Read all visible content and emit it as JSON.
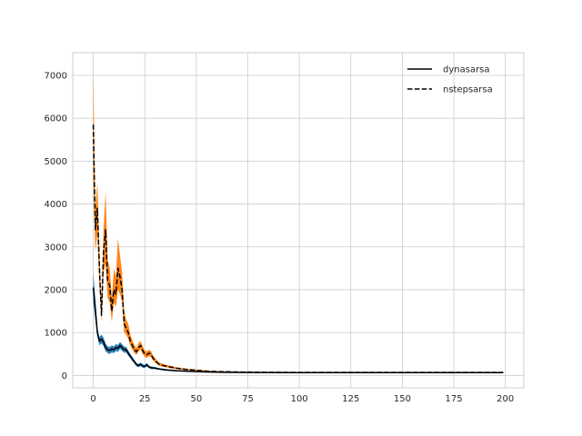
{
  "chart_data": {
    "type": "line",
    "title": "",
    "xlabel": "",
    "ylabel": "",
    "xlim": [
      -9.95,
      208.95
    ],
    "ylim": [
      -290,
      7530
    ],
    "xticks": [
      0,
      25,
      50,
      75,
      100,
      125,
      150,
      175,
      200
    ],
    "yticks": [
      0,
      1000,
      2000,
      3000,
      4000,
      5000,
      6000,
      7000
    ],
    "grid": true,
    "legend_position": "top-right",
    "legend": [
      {
        "label": "dynasarsa",
        "linestyle": "solid"
      },
      {
        "label": "nstepsarsa",
        "linestyle": "dashed"
      }
    ],
    "series": [
      {
        "name": "dynasarsa",
        "line_color": "#000000",
        "band_color": "#1f77b4",
        "linestyle": "solid",
        "x": [
          0,
          1,
          2,
          3,
          4,
          5,
          6,
          7,
          8,
          9,
          10,
          11,
          12,
          13,
          14,
          15,
          16,
          17,
          18,
          19,
          20,
          21,
          22,
          23,
          24,
          25,
          26,
          27,
          28,
          30,
          32,
          35,
          40,
          45,
          50,
          55,
          60,
          70,
          80,
          100,
          150,
          199
        ],
        "y": [
          2050,
          1550,
          1000,
          800,
          850,
          780,
          650,
          600,
          580,
          620,
          600,
          650,
          630,
          700,
          650,
          600,
          600,
          520,
          450,
          380,
          320,
          250,
          230,
          260,
          220,
          210,
          250,
          200,
          180,
          170,
          150,
          130,
          110,
          100,
          90,
          80,
          75,
          70,
          68,
          65,
          65,
          65
        ],
        "lower": [
          1700,
          1300,
          900,
          700,
          750,
          680,
          560,
          520,
          500,
          540,
          520,
          570,
          550,
          620,
          570,
          530,
          530,
          460,
          400,
          330,
          280,
          210,
          190,
          220,
          180,
          175,
          210,
          170,
          150,
          145,
          130,
          110,
          95,
          85,
          78,
          70,
          66,
          62,
          60,
          58,
          58,
          58
        ],
        "upper": [
          2400,
          1800,
          1100,
          900,
          950,
          880,
          740,
          680,
          660,
          700,
          680,
          730,
          710,
          780,
          730,
          670,
          670,
          580,
          500,
          430,
          360,
          290,
          270,
          300,
          260,
          245,
          290,
          230,
          210,
          195,
          170,
          150,
          125,
          115,
          102,
          90,
          84,
          78,
          76,
          72,
          72,
          72
        ]
      },
      {
        "name": "nstepsarsa",
        "line_color": "#000000",
        "band_color": "#ff7f0e",
        "linestyle": "dashed",
        "x": [
          0,
          1,
          2,
          3,
          4,
          5,
          6,
          7,
          8,
          9,
          10,
          11,
          12,
          13,
          14,
          15,
          16,
          17,
          18,
          19,
          20,
          21,
          22,
          23,
          24,
          25,
          26,
          27,
          28,
          29,
          30,
          31,
          32,
          34,
          36,
          38,
          40,
          45,
          50,
          55,
          60,
          70,
          80,
          100,
          150,
          199
        ],
        "y": [
          5850,
          3400,
          3900,
          2500,
          1400,
          2900,
          3400,
          2200,
          2100,
          1500,
          2000,
          1900,
          2500,
          2300,
          2000,
          1200,
          1100,
          1000,
          800,
          700,
          600,
          550,
          650,
          700,
          580,
          500,
          480,
          520,
          500,
          400,
          350,
          300,
          260,
          230,
          210,
          190,
          170,
          140,
          120,
          100,
          90,
          80,
          75,
          70,
          70,
          70
        ],
        "lower": [
          4600,
          2900,
          3300,
          2100,
          1250,
          2400,
          2600,
          1800,
          1700,
          1250,
          1700,
          1600,
          2000,
          1900,
          1700,
          1000,
          950,
          850,
          690,
          600,
          520,
          480,
          560,
          600,
          500,
          430,
          410,
          450,
          430,
          350,
          300,
          260,
          225,
          200,
          185,
          165,
          150,
          122,
          105,
          88,
          80,
          72,
          67,
          63,
          63,
          63
        ],
        "upper": [
          7100,
          3900,
          4500,
          2900,
          1600,
          3400,
          4300,
          2700,
          2500,
          1800,
          2500,
          2300,
          3200,
          2800,
          2400,
          1500,
          1300,
          1200,
          950,
          820,
          700,
          640,
          760,
          800,
          680,
          580,
          560,
          600,
          570,
          460,
          410,
          350,
          300,
          265,
          240,
          220,
          195,
          160,
          138,
          115,
          102,
          90,
          84,
          78,
          78,
          78
        ]
      }
    ]
  }
}
